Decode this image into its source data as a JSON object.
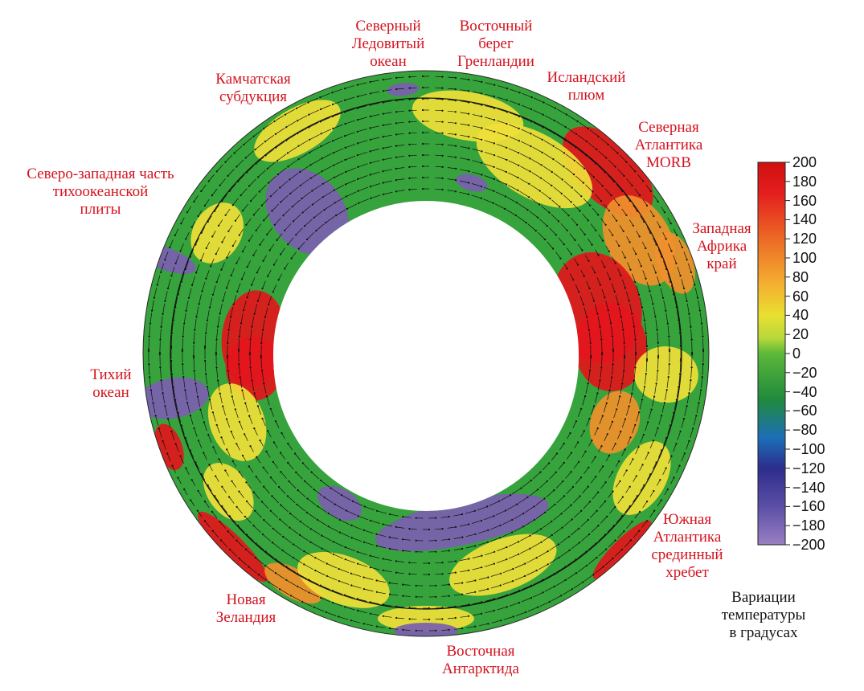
{
  "labels": {
    "arctic": "Северный\nЛедовитый\nокеан",
    "greenland": "Восточный\nберег\nГренландии",
    "iceland": "Исландский\nплюм",
    "kamchatka": "Камчатская\nсубдукция",
    "north_atlantic": "Северная\nАтлантика\nMORB",
    "nw_pacific": "Северо-западная часть\nтихоокеанской\nплиты",
    "west_africa": "Западная\nАфрика\nкрай",
    "pacific": "Тихий\nокеан",
    "south_atlantic": "Южная\nАтлантика\nсрединный\nхребет",
    "new_zealand": "Новая\nЗеландия",
    "east_antarctica": "Восточная\nАнтарктида"
  },
  "colorbar": {
    "title": "Вариации\nтемпературы\nв градусах",
    "ticks": [
      "200",
      "180",
      "160",
      "140",
      "120",
      "100",
      "80",
      "60",
      "40",
      "20",
      "0",
      "−20",
      "−40",
      "−60",
      "−80",
      "−100",
      "−120",
      "−140",
      "−160",
      "−180",
      "−200"
    ],
    "colors": [
      "#8c6fb8",
      "#5b4fa6",
      "#2d2d8c",
      "#1c6fb8",
      "#1f8a3c",
      "#3ea83a",
      "#8cc83a",
      "#e8e030",
      "#f4b030",
      "#ec6a26",
      "#e41e1e",
      "#d01010"
    ]
  },
  "ring_colors": {
    "purple": "#7b5eb0",
    "green": "#36a33c",
    "yellow": "#f0e03a",
    "orange": "#f0902c",
    "red": "#e3161c"
  }
}
